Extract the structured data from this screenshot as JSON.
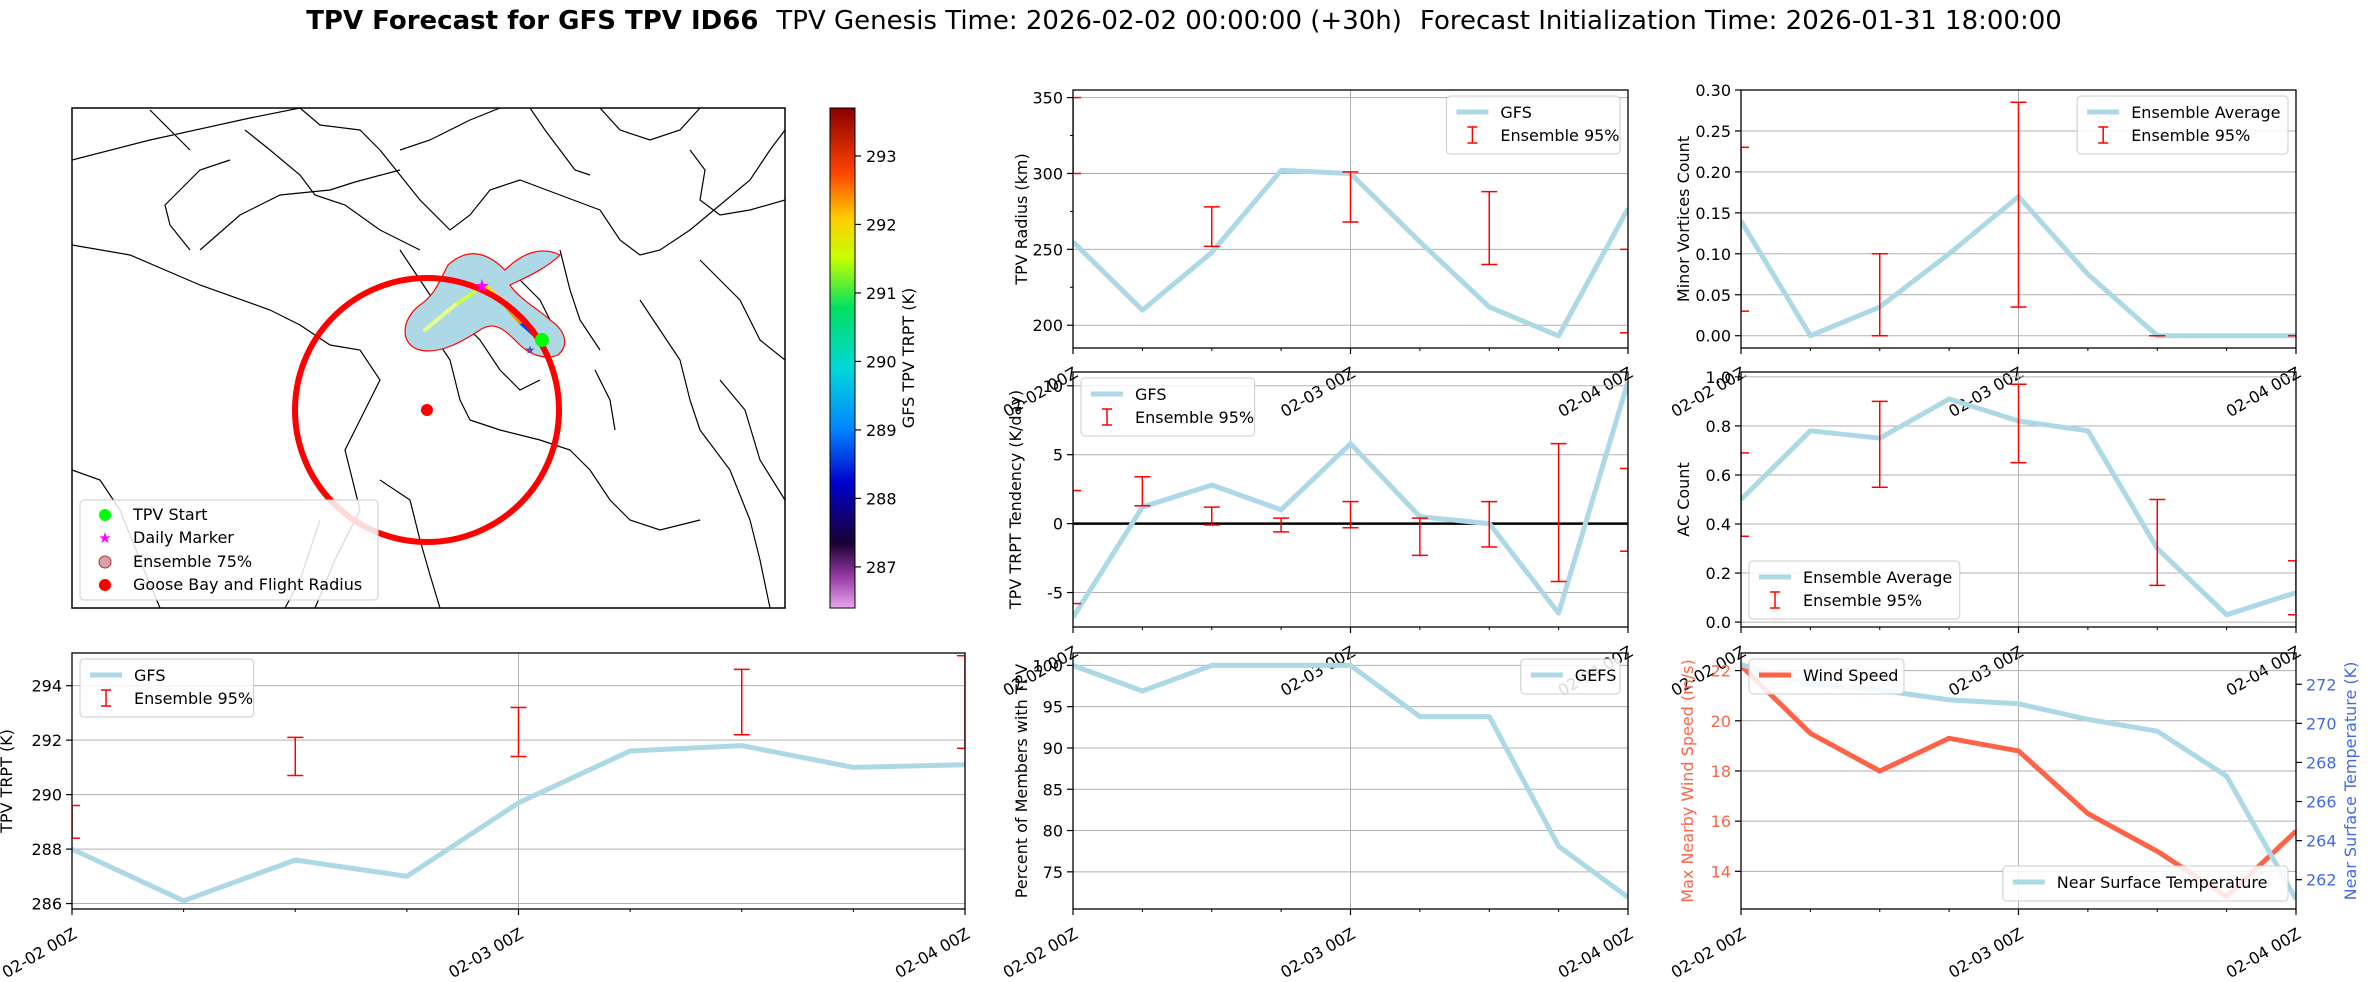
{
  "figure": {
    "title_bold": "TPV Forecast for GFS TPV ID66",
    "title_genesis": "TPV Genesis Time: 2026-02-02 00:00:00 (+30h)",
    "title_init": "Forecast Initialization Time: 2026-01-31 18:00:00"
  },
  "colors": {
    "gfs_line": "#add8e6",
    "ensemble_bar": "#ff0000",
    "wind_line": "#ff6347",
    "temp_axis": "#4169e1",
    "tpv_start": "#00ff00",
    "daily_marker": "#ff00ff",
    "goose_bay": "#ff0000"
  },
  "chart_data": [
    {
      "id": "map",
      "type": "map",
      "legend": [
        "TPV Start",
        "Daily Marker",
        "Ensemble 75%",
        "Goose Bay and Flight Radius"
      ],
      "colorbar": {
        "label": "GFS TPV TRPT (K)",
        "range": [
          286.4,
          293.7
        ],
        "ticks": [
          287,
          288,
          289,
          290,
          291,
          292,
          293
        ]
      }
    },
    {
      "id": "radius",
      "type": "line",
      "ylabel": "TPV Radius (km)",
      "x": [
        "2026-02-02 00Z",
        "2026-02-02 06Z",
        "2026-02-02 12Z",
        "2026-02-02 18Z",
        "2026-02-03 00Z",
        "2026-02-03 06Z",
        "2026-02-03 12Z",
        "2026-02-03 18Z",
        "2026-02-04 00Z"
      ],
      "ylim": [
        185,
        355
      ],
      "yticks": [
        200,
        250,
        300,
        350
      ],
      "yticks_minor": [
        225,
        275,
        325
      ],
      "xticks": [
        "02-02 00Z",
        "02-03 00Z",
        "02-04 00Z"
      ],
      "legend_position": "upper right",
      "series": [
        {
          "name": "GFS",
          "values": [
            255,
            210,
            248,
            302,
            300,
            255,
            212,
            193,
            277
          ]
        }
      ],
      "errorbars": {
        "name": "Ensemble 95%",
        "x": [
          "2026-02-02 00Z",
          "2026-02-02 12Z",
          "2026-02-03 00Z",
          "2026-02-03 12Z",
          "2026-02-04 00Z"
        ],
        "low": [
          300,
          252,
          268,
          240,
          195
        ],
        "high": [
          350,
          278,
          301,
          288,
          250
        ]
      }
    },
    {
      "id": "minor_vortices",
      "type": "line",
      "ylabel": "Minor Vortices Count",
      "x": [
        "2026-02-02 00Z",
        "2026-02-02 06Z",
        "2026-02-02 12Z",
        "2026-02-02 18Z",
        "2026-02-03 00Z",
        "2026-02-03 06Z",
        "2026-02-03 12Z",
        "2026-02-03 18Z",
        "2026-02-04 00Z"
      ],
      "ylim": [
        -0.015,
        0.3
      ],
      "yticks": [
        0.0,
        0.05,
        0.1,
        0.15,
        0.2,
        0.25,
        0.3
      ],
      "xticks": [
        "02-02 00Z",
        "02-03 00Z",
        "02-04 00Z"
      ],
      "legend_position": "upper right",
      "series": [
        {
          "name": "Ensemble Average",
          "values": [
            0.14,
            0.0,
            0.035,
            0.1,
            0.17,
            0.075,
            0.0,
            0.0,
            0.0
          ]
        }
      ],
      "errorbars": {
        "name": "Ensemble 95%",
        "x": [
          "2026-02-02 00Z",
          "2026-02-02 12Z",
          "2026-02-03 00Z",
          "2026-02-03 12Z",
          "2026-02-04 00Z"
        ],
        "low": [
          0.03,
          0.0,
          0.035,
          0.0,
          0.0
        ],
        "high": [
          0.23,
          0.1,
          0.285,
          0.0,
          0.0
        ]
      }
    },
    {
      "id": "tendency",
      "type": "line",
      "ylabel": "TPV TRPT Tendency (K/day)",
      "x": [
        "2026-02-02 00Z",
        "2026-02-02 06Z",
        "2026-02-02 12Z",
        "2026-02-02 18Z",
        "2026-02-03 00Z",
        "2026-02-03 06Z",
        "2026-02-03 12Z",
        "2026-02-03 18Z",
        "2026-02-04 00Z"
      ],
      "ylim": [
        -7.5,
        11
      ],
      "yticks": [
        -5,
        0,
        5,
        10
      ],
      "xticks": [
        "02-02 00Z",
        "02-03 00Z",
        "02-04 00Z"
      ],
      "zero_line": true,
      "legend_position": "upper left",
      "series": [
        {
          "name": "GFS",
          "values": [
            -6.8,
            1.2,
            2.8,
            1.0,
            5.8,
            0.5,
            0.0,
            -6.5,
            10.3
          ]
        }
      ],
      "errorbars": {
        "name": "Ensemble 95%",
        "x": [
          "2026-02-02 00Z",
          "2026-02-02 06Z",
          "2026-02-02 12Z",
          "2026-02-02 18Z",
          "2026-02-03 00Z",
          "2026-02-03 06Z",
          "2026-02-03 12Z",
          "2026-02-03 18Z",
          "2026-02-04 00Z"
        ],
        "low": [
          -5.8,
          1.3,
          -0.1,
          -0.6,
          -0.3,
          -2.3,
          -1.7,
          -4.2,
          -2.0
        ],
        "high": [
          2.4,
          3.4,
          1.2,
          0.4,
          1.6,
          0.4,
          1.6,
          5.8,
          4.0
        ]
      }
    },
    {
      "id": "ac_count",
      "type": "line",
      "ylabel": "AC Count",
      "x": [
        "2026-02-02 00Z",
        "2026-02-02 06Z",
        "2026-02-02 12Z",
        "2026-02-02 18Z",
        "2026-02-03 00Z",
        "2026-02-03 06Z",
        "2026-02-03 12Z",
        "2026-02-03 18Z",
        "2026-02-04 00Z"
      ],
      "ylim": [
        -0.02,
        1.02
      ],
      "yticks": [
        0.0,
        0.2,
        0.4,
        0.6,
        0.8,
        1.0
      ],
      "xticks": [
        "02-02 00Z",
        "02-03 00Z",
        "02-04 00Z"
      ],
      "legend_position": "lower left",
      "series": [
        {
          "name": "Ensemble Average",
          "values": [
            0.5,
            0.78,
            0.75,
            0.91,
            0.82,
            0.78,
            0.3,
            0.03,
            0.12
          ]
        }
      ],
      "errorbars": {
        "name": "Ensemble 95%",
        "x": [
          "2026-02-02 00Z",
          "2026-02-02 12Z",
          "2026-02-03 00Z",
          "2026-02-03 12Z",
          "2026-02-04 00Z"
        ],
        "low": [
          0.35,
          0.55,
          0.65,
          0.15,
          0.03
        ],
        "high": [
          0.69,
          0.9,
          0.97,
          0.5,
          0.25
        ]
      }
    },
    {
      "id": "trpt",
      "type": "line",
      "ylabel": "TPV TRPT (K)",
      "x": [
        "2026-02-02 00Z",
        "2026-02-02 06Z",
        "2026-02-02 12Z",
        "2026-02-02 18Z",
        "2026-02-03 00Z",
        "2026-02-03 06Z",
        "2026-02-03 12Z",
        "2026-02-03 18Z",
        "2026-02-04 00Z"
      ],
      "ylim": [
        285.8,
        295.2
      ],
      "yticks": [
        286,
        288,
        290,
        292,
        294
      ],
      "xticks": [
        "02-02 00Z",
        "02-03 00Z",
        "02-04 00Z"
      ],
      "legend_position": "upper left",
      "series": [
        {
          "name": "GFS",
          "values": [
            288.0,
            286.1,
            287.6,
            287.0,
            289.7,
            291.6,
            291.8,
            291.0,
            291.1
          ]
        }
      ],
      "errorbars": {
        "name": "Ensemble 95%",
        "x": [
          "2026-02-02 00Z",
          "2026-02-02 12Z",
          "2026-02-03 00Z",
          "2026-02-03 12Z",
          "2026-02-04 00Z"
        ],
        "low": [
          288.4,
          290.7,
          291.4,
          292.2,
          291.7
        ],
        "high": [
          289.6,
          292.1,
          293.2,
          294.6,
          295.1
        ]
      }
    },
    {
      "id": "members",
      "type": "line",
      "ylabel": "Percent of Members with TPV",
      "x": [
        "2026-02-02 00Z",
        "2026-02-02 06Z",
        "2026-02-02 12Z",
        "2026-02-02 18Z",
        "2026-02-03 00Z",
        "2026-02-03 06Z",
        "2026-02-03 12Z",
        "2026-02-03 18Z",
        "2026-02-04 00Z"
      ],
      "ylim": [
        70.5,
        101.5
      ],
      "yticks": [
        75,
        80,
        85,
        90,
        95,
        100
      ],
      "xticks": [
        "02-02 00Z",
        "02-03 00Z",
        "02-04 00Z"
      ],
      "legend_position": "upper right",
      "series": [
        {
          "name": "GEFS",
          "values": [
            100,
            96.9,
            100,
            100,
            100,
            93.8,
            93.8,
            78.1,
            71.9
          ]
        }
      ]
    },
    {
      "id": "wind_temp",
      "type": "line",
      "ylabel": "Max Nearby Wind Speed (m/s)",
      "ylabel_right": "Near Surface Temperature (K)",
      "x": [
        "2026-02-02 00Z",
        "2026-02-02 06Z",
        "2026-02-02 12Z",
        "2026-02-02 18Z",
        "2026-02-03 00Z",
        "2026-02-03 06Z",
        "2026-02-03 12Z",
        "2026-02-03 18Z",
        "2026-02-04 00Z"
      ],
      "ylim": [
        12.5,
        22.7
      ],
      "yticks": [
        14,
        16,
        18,
        20,
        22
      ],
      "ylim_right": [
        260.5,
        273.6
      ],
      "yticks_right": [
        262,
        264,
        266,
        268,
        270,
        272
      ],
      "xticks": [
        "02-02 00Z",
        "02-03 00Z",
        "02-04 00Z"
      ],
      "series": [
        {
          "name": "Wind Speed",
          "axis": "left",
          "legend_position": "upper left",
          "values": [
            22.2,
            19.5,
            18.0,
            19.3,
            18.8,
            16.3,
            14.8,
            13.0,
            15.6
          ]
        },
        {
          "name": "Near Surface Temperature",
          "axis": "right",
          "legend_position": "lower right",
          "values": [
            273.0,
            272.0,
            271.7,
            271.2,
            271.0,
            270.2,
            269.6,
            267.3,
            261.0
          ]
        }
      ]
    }
  ]
}
